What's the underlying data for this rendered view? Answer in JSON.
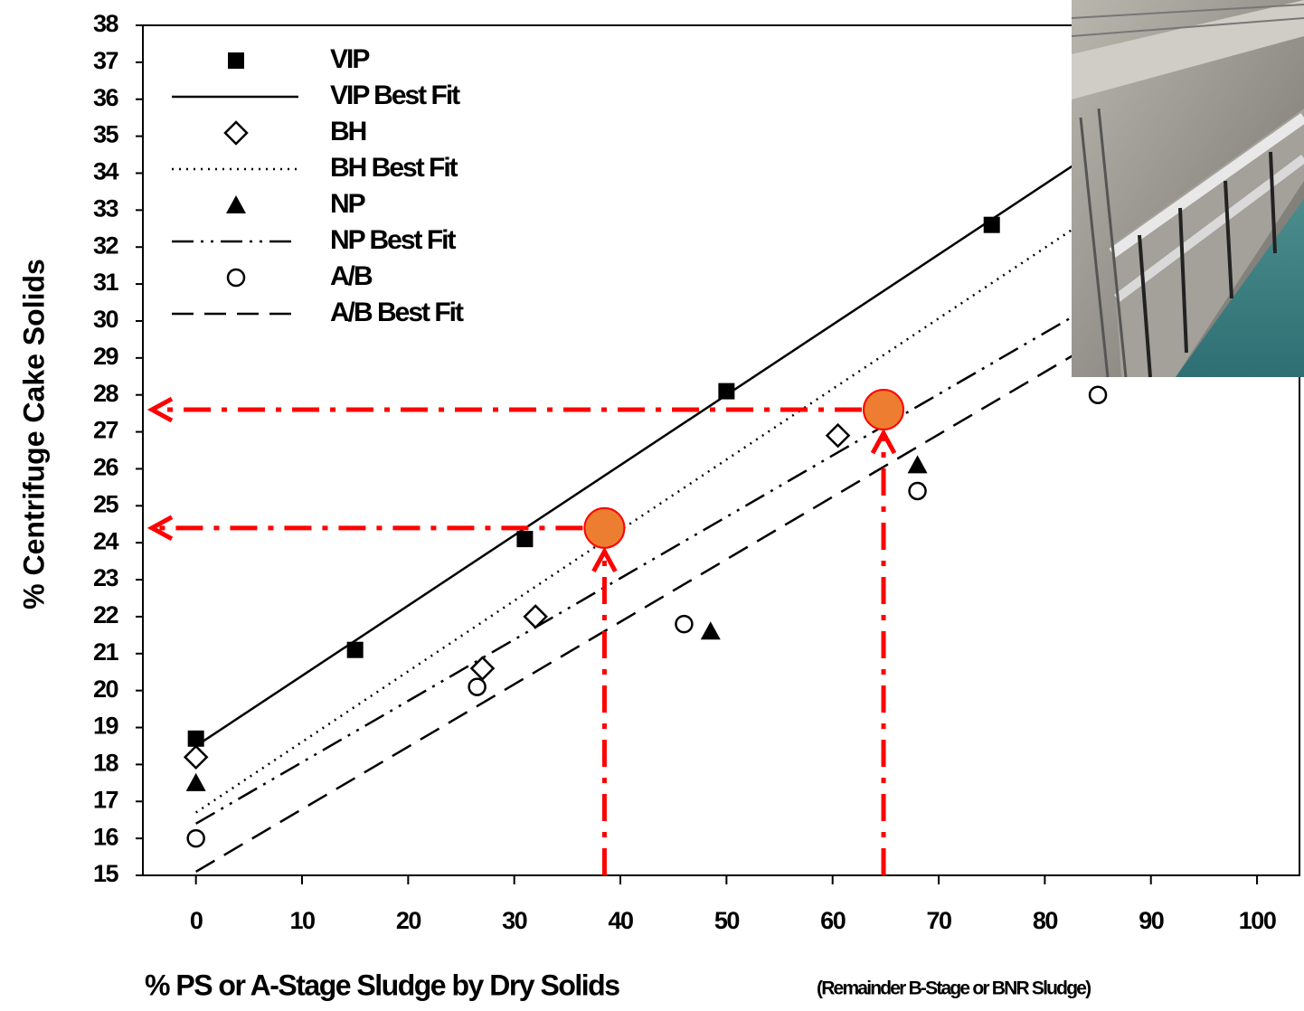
{
  "chart_data": {
    "type": "scatter",
    "ylabel": "% Centrifuge Cake Solids",
    "xlabel": "% PS or A-Stage Sludge by Dry Solids",
    "xlabel_note": "(Remainder B-Stage or BNR Sludge)",
    "xlim": [
      -5,
      104
    ],
    "ylim": [
      15,
      38
    ],
    "xticks": [
      0,
      10,
      20,
      30,
      40,
      50,
      60,
      70,
      80,
      90,
      100
    ],
    "yticks": [
      15,
      16,
      17,
      18,
      19,
      20,
      21,
      22,
      23,
      24,
      25,
      26,
      27,
      28,
      29,
      30,
      31,
      32,
      33,
      34,
      35,
      36,
      37,
      38
    ],
    "series": [
      {
        "name": "VIP",
        "color": "#000000",
        "marker": "square",
        "x": [
          0,
          15,
          31,
          50,
          75
        ],
        "values": [
          18.7,
          21.1,
          24.1,
          28.1,
          32.6
        ]
      },
      {
        "name": "VIP Best Fit",
        "color": "#000000",
        "line_style": "solid",
        "x": [
          0,
          100
        ],
        "values": [
          18.5,
          37.5
        ]
      },
      {
        "name": "BH",
        "color": "#000000",
        "marker": "diamond",
        "x": [
          0,
          27,
          32,
          60.5
        ],
        "values": [
          18.2,
          20.6,
          22.0,
          26.9
        ]
      },
      {
        "name": "BH Best Fit",
        "color": "#000000",
        "line_style": "dotted",
        "x": [
          0,
          100
        ],
        "values": [
          16.7,
          35.8
        ]
      },
      {
        "name": "NP",
        "color": "#000000",
        "marker": "triangle",
        "x": [
          0,
          48.5,
          68
        ],
        "values": [
          17.5,
          21.6,
          26.1
        ]
      },
      {
        "name": "NP Best Fit",
        "color": "#000000",
        "line_style": "dash-dot-dot",
        "x": [
          0,
          100
        ],
        "values": [
          16.4,
          33.0
        ]
      },
      {
        "name": "A/B",
        "color": "#000000",
        "marker": "circle",
        "x": [
          0,
          26.5,
          46,
          68,
          85
        ],
        "values": [
          16.0,
          20.1,
          21.8,
          25.4,
          28.0
        ]
      },
      {
        "name": "A/B Best Fit",
        "color": "#000000",
        "line_style": "dashed",
        "x": [
          0,
          100
        ],
        "values": [
          15.1,
          32.0
        ]
      }
    ],
    "highlight_points": {
      "color": "#ed7d31",
      "arrow_color": "#ff0000",
      "x": [
        38.5,
        64.8
      ],
      "values": [
        24.4,
        27.6
      ]
    }
  }
}
